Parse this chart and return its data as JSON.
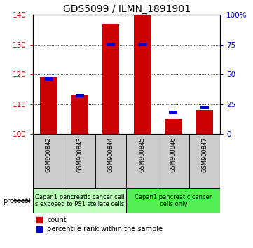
{
  "title": "GDS5099 / ILMN_1891901",
  "samples": [
    "GSM900842",
    "GSM900843",
    "GSM900844",
    "GSM900845",
    "GSM900846",
    "GSM900847"
  ],
  "counts": [
    119,
    113,
    137,
    140,
    105,
    108
  ],
  "percentile_ranks": [
    46,
    32,
    75,
    75,
    18,
    22
  ],
  "ymin": 100,
  "ymax": 140,
  "yticks_left": [
    100,
    110,
    120,
    130,
    140
  ],
  "yticks_right": [
    0,
    25,
    50,
    75,
    100
  ],
  "ytick_right_labels": [
    "0",
    "25",
    "50",
    "75",
    "100%"
  ],
  "bar_color": "#cc0000",
  "percentile_color": "#0000cc",
  "bar_width": 0.55,
  "protocol_group1_color": "#bbffbb",
  "protocol_group2_color": "#55ee55",
  "protocol_group1_label": "Capan1 pancreatic cancer cell\ns exposed to PS1 stellate cells",
  "protocol_group2_label": "Capan1 pancreatic cancer\ncells only",
  "legend_count_label": "count",
  "legend_percentile_label": "percentile rank within the sample",
  "ylabel_left_color": "#cc0000",
  "ylabel_right_color": "#0000cc",
  "title_fontsize": 10,
  "tick_fontsize": 7.5,
  "sample_fontsize": 6,
  "proto_fontsize": 6,
  "legend_fontsize": 7
}
